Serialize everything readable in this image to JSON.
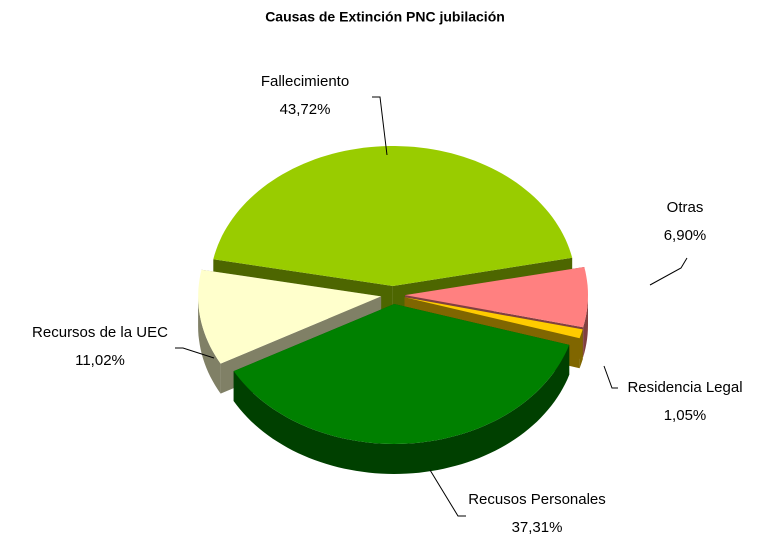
{
  "chart_data": {
    "type": "pie",
    "title": "Causas de Extinción PNC jubilación",
    "categories": [
      "Fallecimiento",
      "Otras",
      "Residencia Legal",
      "Recusos Personales",
      "Recursos de la UEC"
    ],
    "values": [
      43.72,
      6.9,
      1.05,
      37.31,
      11.02
    ],
    "value_labels": [
      "43,72%",
      "6,90%",
      "1,05%",
      "37,31%",
      "11,02%"
    ],
    "colors": [
      "#99cc00",
      "#ff8080",
      "#ffcc00",
      "#008000",
      "#ffffcc"
    ]
  }
}
